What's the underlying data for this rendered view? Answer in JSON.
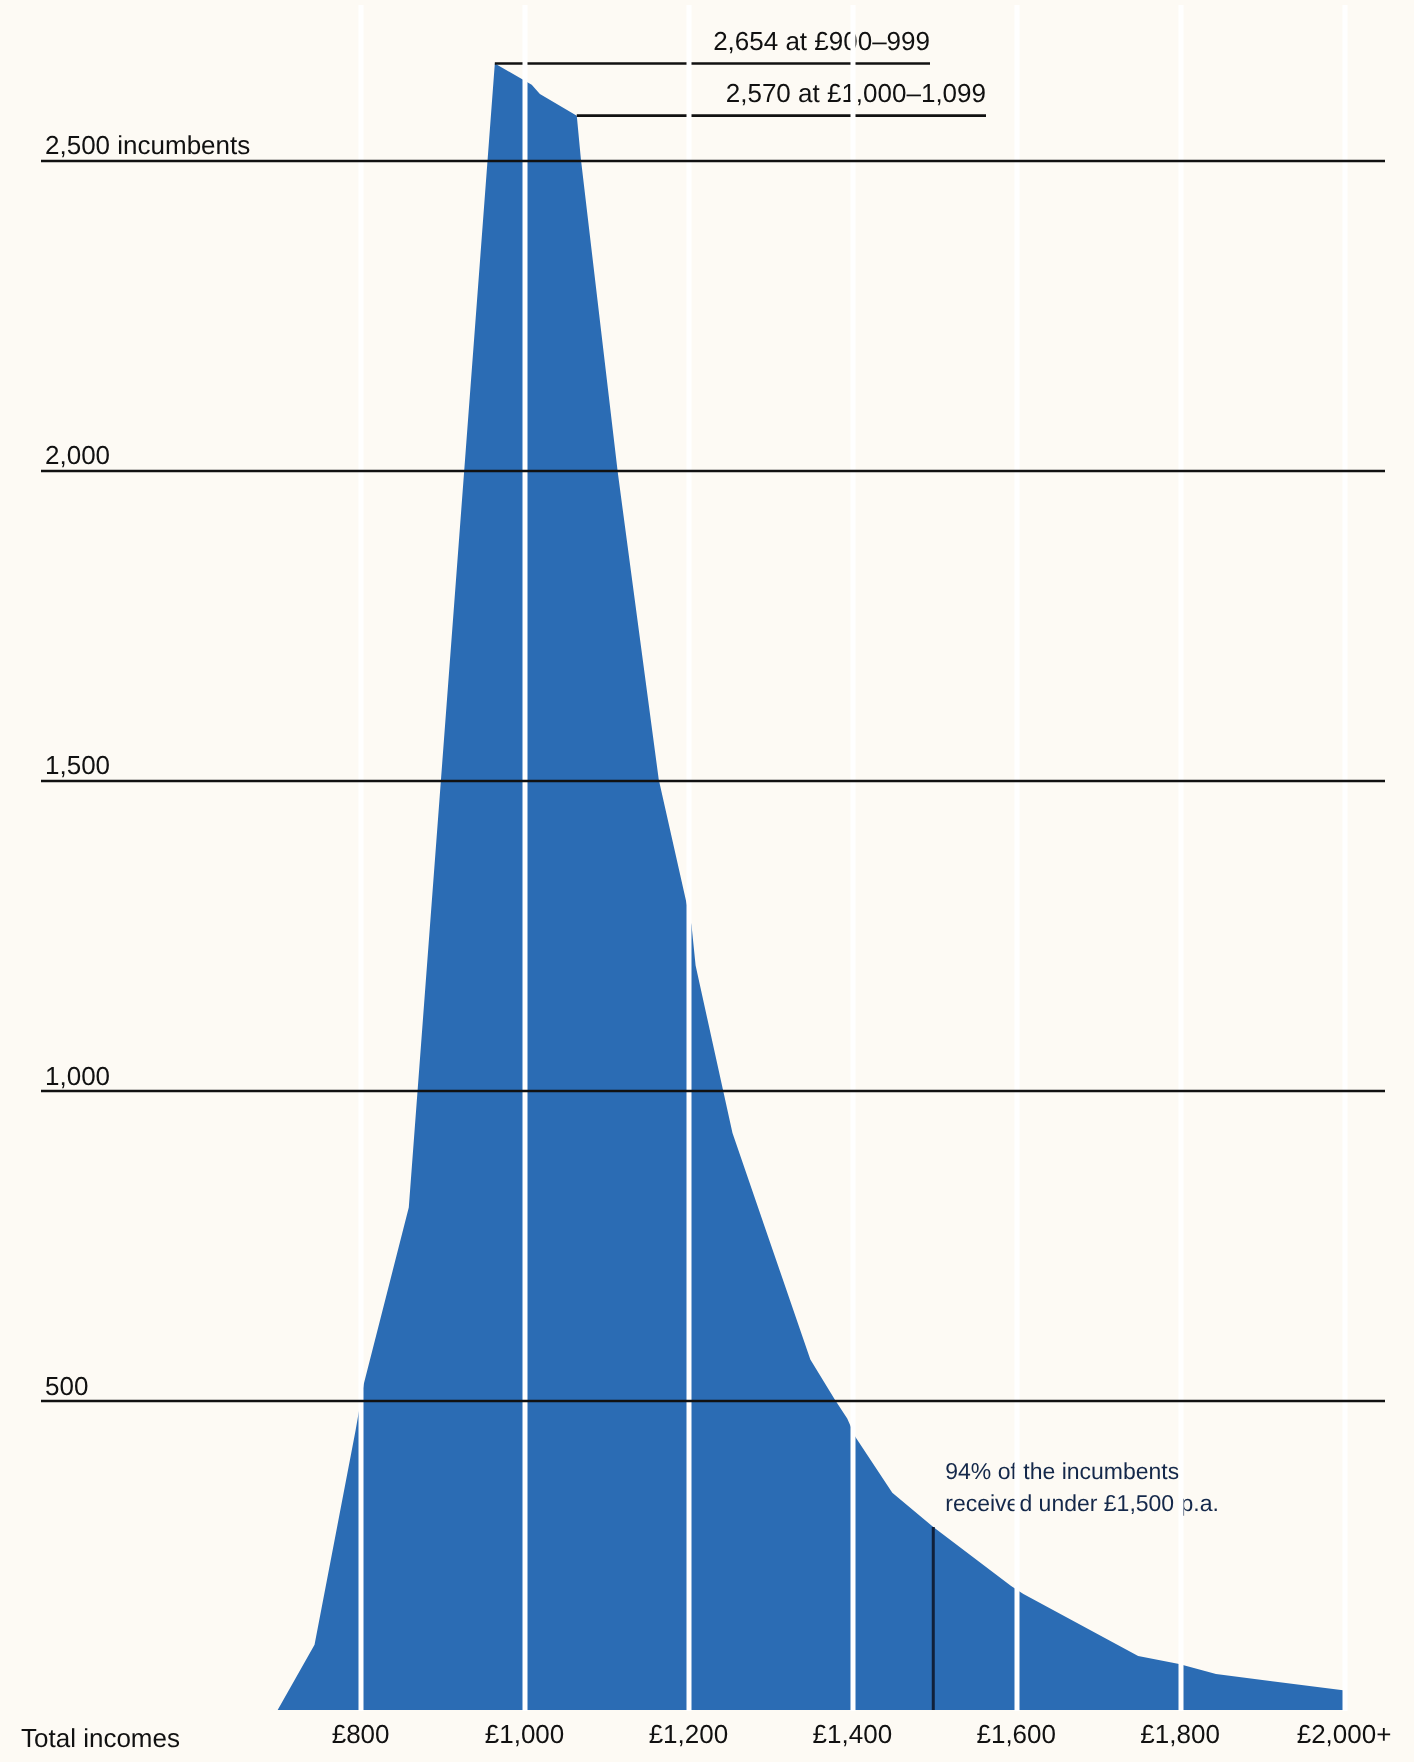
{
  "chart_data": {
    "type": "area",
    "xlabel": "Total incomes",
    "x": [
      700,
      745,
      795,
      805,
      860,
      965,
      1010,
      1020,
      1065,
      1070,
      1115,
      1165,
      1205,
      1210,
      1255,
      1350,
      1380,
      1395,
      1405,
      1450,
      1500,
      1595,
      1610,
      1750,
      1800,
      1845,
      2000
    ],
    "values": [
      0,
      105,
      450,
      525,
      810,
      2654,
      2620,
      2605,
      2570,
      2500,
      1995,
      1500,
      1265,
      1200,
      930,
      565,
      500,
      470,
      440,
      350,
      295,
      200,
      187,
      87,
      74,
      58,
      32
    ],
    "color": "#2b6cb4",
    "xlim": [
      410,
      2050
    ],
    "xticks": [
      {
        "value": 800,
        "label": "£800"
      },
      {
        "value": 1000,
        "label": "£1,000"
      },
      {
        "value": 1200,
        "label": "£1,200"
      },
      {
        "value": 1400,
        "label": "£1,400"
      },
      {
        "value": 1600,
        "label": "£1,600"
      },
      {
        "value": 1800,
        "label": "£1,800"
      },
      {
        "value": 2000,
        "label": "£2,000+"
      }
    ],
    "ylim": [
      0,
      2750
    ],
    "yticks": [
      {
        "value": 500,
        "label": "500"
      },
      {
        "value": 1000,
        "label": "1,000"
      },
      {
        "value": 1500,
        "label": "1,500"
      },
      {
        "value": 2000,
        "label": "2,000"
      },
      {
        "value": 2500,
        "label": "2,500 incumbents"
      }
    ],
    "grid": true,
    "annotations": [
      {
        "text": "2,654 at £900–999",
        "x": 965,
        "y": 2654
      },
      {
        "text": "2,570 at £1,000–1,099",
        "x": 1065,
        "y": 2570
      }
    ],
    "ref_lines": [
      {
        "axis": "x",
        "value": 1500,
        "label": "94% of the incumbents\nreceived under £1,500 p.a."
      }
    ]
  }
}
